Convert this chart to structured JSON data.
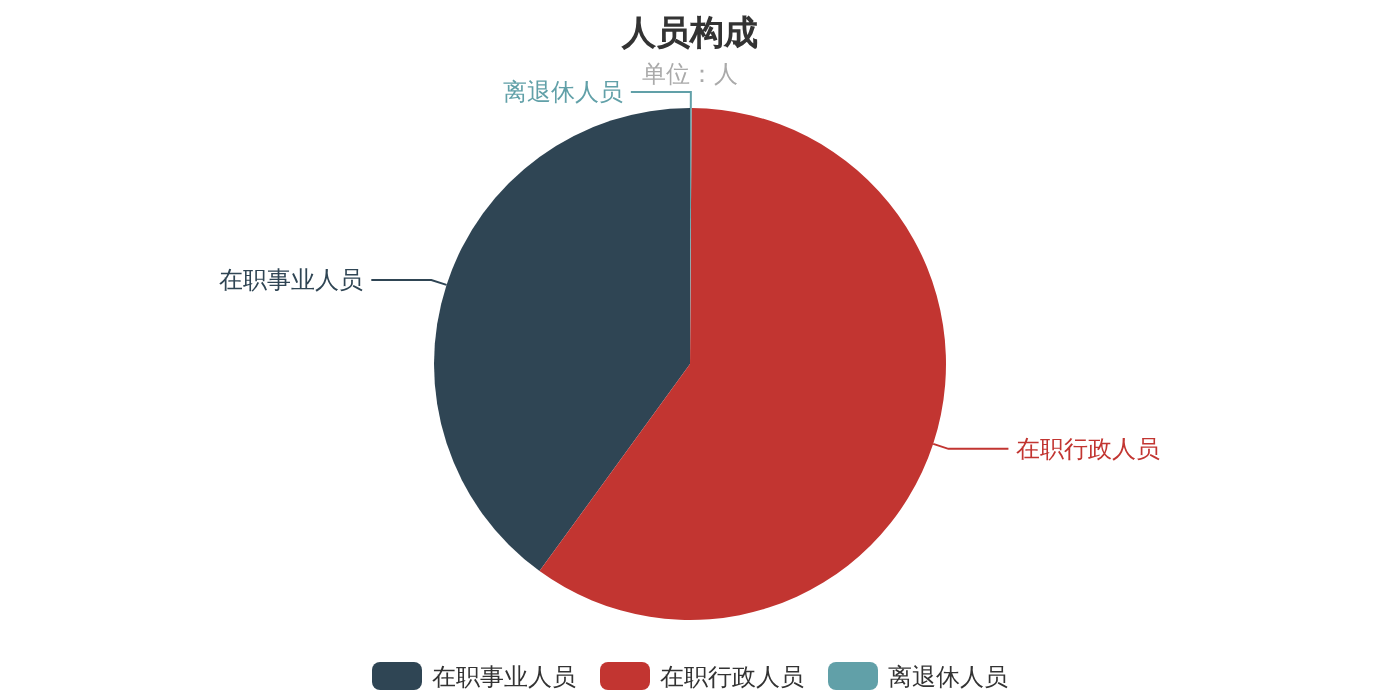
{
  "chart_data": {
    "type": "pie",
    "title": "人员构成",
    "subtitle": "单位：人",
    "categories": [
      "在职事业人员",
      "在职行政人员",
      "离退休人员"
    ],
    "values": [
      40,
      59.9,
      0.1
    ],
    "colors": [
      "#2f4554",
      "#c23531",
      "#61a0a8"
    ],
    "legend": "bottom"
  }
}
